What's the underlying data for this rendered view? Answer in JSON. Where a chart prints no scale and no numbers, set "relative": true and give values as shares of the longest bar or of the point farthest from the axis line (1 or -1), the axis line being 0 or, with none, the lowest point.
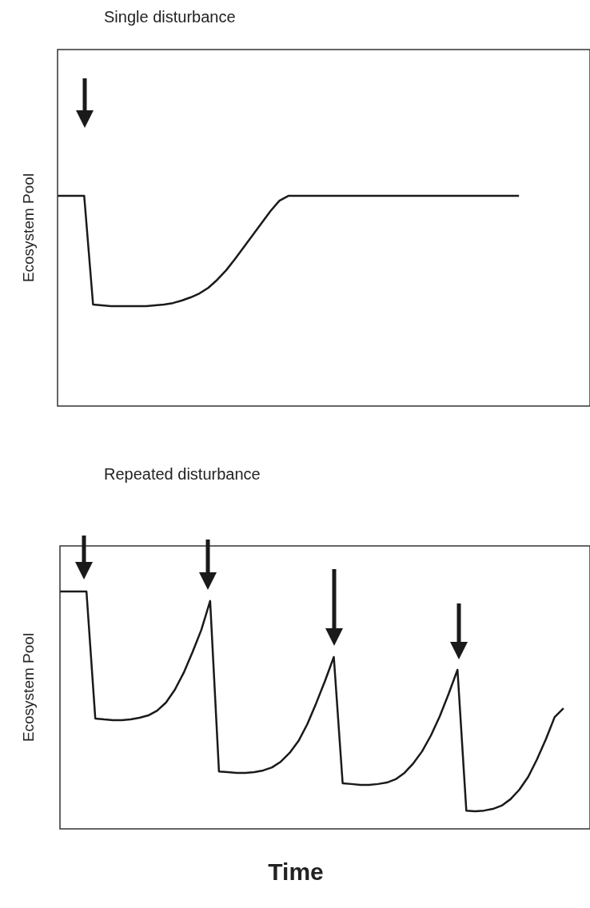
{
  "chart_data": [
    {
      "type": "line",
      "title": "Single disturbance",
      "ylabel": "Ecosystem Pool",
      "relative": true,
      "color": "#1a1a1a",
      "categories": [
        null,
        null,
        null,
        null,
        null,
        null,
        null,
        null,
        null,
        null,
        null,
        null,
        null,
        null,
        null,
        null,
        null,
        null,
        null,
        null,
        null,
        null,
        null,
        null,
        null,
        null,
        null,
        null,
        null,
        null,
        null,
        null,
        null,
        null,
        null,
        null,
        null,
        null,
        null,
        null,
        null,
        null,
        null,
        null,
        null,
        null,
        null,
        null,
        null,
        null,
        null,
        null,
        null,
        null,
        null,
        null,
        null,
        null,
        null,
        null,
        null
      ],
      "values": [
        1,
        1,
        1,
        1,
        0.483,
        0.479,
        0.475,
        0.475,
        0.475,
        0.475,
        0.475,
        0.479,
        0.483,
        0.49,
        0.502,
        0.517,
        0.536,
        0.563,
        0.601,
        0.646,
        0.7,
        0.757,
        0.814,
        0.871,
        0.928,
        0.977,
        1,
        1,
        1,
        1,
        1,
        1,
        1,
        1,
        1,
        1,
        1,
        1,
        1,
        1,
        1,
        1,
        1,
        1,
        1,
        1,
        1,
        1,
        1,
        1,
        1,
        1,
        1,
        null,
        null,
        null,
        null,
        null,
        null,
        null,
        null
      ]
    },
    {
      "type": "line",
      "title": "Repeated disturbance",
      "ylabel": "Ecosystem Pool",
      "xlabel": "Time",
      "relative": true,
      "color": "#1a1a1a",
      "categories": [
        null,
        null,
        null,
        null,
        null,
        null,
        null,
        null,
        null,
        null,
        null,
        null,
        null,
        null,
        null,
        null,
        null,
        null,
        null,
        null,
        null,
        null,
        null,
        null,
        null,
        null,
        null,
        null,
        null,
        null,
        null,
        null,
        null,
        null,
        null,
        null,
        null,
        null,
        null,
        null,
        null,
        null,
        null,
        null,
        null,
        null,
        null,
        null,
        null,
        null,
        null,
        null,
        null,
        null,
        null,
        null,
        null,
        null,
        null,
        null,
        null
      ],
      "values": [
        1,
        1,
        1,
        1,
        0.465,
        0.461,
        0.458,
        0.458,
        0.461,
        0.468,
        0.478,
        0.498,
        0.532,
        0.586,
        0.657,
        0.744,
        0.838,
        0.96,
        0.242,
        0.239,
        0.236,
        0.236,
        0.239,
        0.246,
        0.259,
        0.283,
        0.32,
        0.37,
        0.441,
        0.529,
        0.623,
        0.724,
        0.192,
        0.189,
        0.185,
        0.185,
        0.189,
        0.195,
        0.209,
        0.236,
        0.276,
        0.327,
        0.394,
        0.475,
        0.569,
        0.67,
        0.077,
        0.074,
        0.077,
        0.084,
        0.098,
        0.125,
        0.165,
        0.219,
        0.293,
        0.377,
        0.471,
        0.508,
        null,
        null,
        null
      ]
    }
  ]
}
